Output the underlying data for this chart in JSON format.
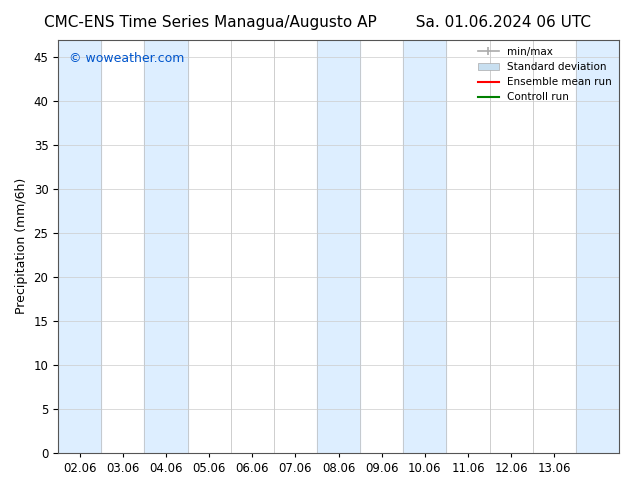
{
  "title": "CMC-ENS Time Series Managua/Augusto AP",
  "title_right": "Sa. 01.06.2024 06 UTC",
  "ylabel": "Precipitation (mm/6h)",
  "xlabel": "",
  "xlim_min": -0.5,
  "xlim_max": 12.5,
  "ylim": [
    0,
    47
  ],
  "yticks": [
    0,
    5,
    10,
    15,
    20,
    25,
    30,
    35,
    40,
    45
  ],
  "xtick_labels": [
    "02.06",
    "03.06",
    "04.06",
    "05.06",
    "06.06",
    "07.06",
    "08.06",
    "09.06",
    "10.06",
    "11.06",
    "12.06",
    "13.06"
  ],
  "xtick_positions": [
    0,
    1,
    2,
    3,
    4,
    5,
    6,
    7,
    8,
    9,
    10,
    11
  ],
  "background_color": "#ffffff",
  "plot_bg_color": "#ffffff",
  "shaded_columns": [
    {
      "x_start": -0.5,
      "x_end": 0.5,
      "color": "#ddeeff"
    },
    {
      "x_start": 1.5,
      "x_end": 2.5,
      "color": "#ddeeff"
    },
    {
      "x_start": 5.5,
      "x_end": 6.5,
      "color": "#ddeeff"
    },
    {
      "x_start": 7.5,
      "x_end": 8.5,
      "color": "#ddeeff"
    },
    {
      "x_start": 11.5,
      "x_end": 12.5,
      "color": "#ddeeff"
    }
  ],
  "legend_entries": [
    {
      "label": "min/max",
      "color": "#aaaaaa",
      "style": "errorbar"
    },
    {
      "label": "Standard deviation",
      "color": "#c8dff0",
      "style": "fill"
    },
    {
      "label": "Ensemble mean run",
      "color": "#ff0000",
      "style": "line"
    },
    {
      "label": "Controll run",
      "color": "#008000",
      "style": "line"
    }
  ],
  "watermark": "© woweather.com",
  "watermark_color": "#0055cc",
  "title_fontsize": 11,
  "tick_fontsize": 8.5,
  "ylabel_fontsize": 9
}
